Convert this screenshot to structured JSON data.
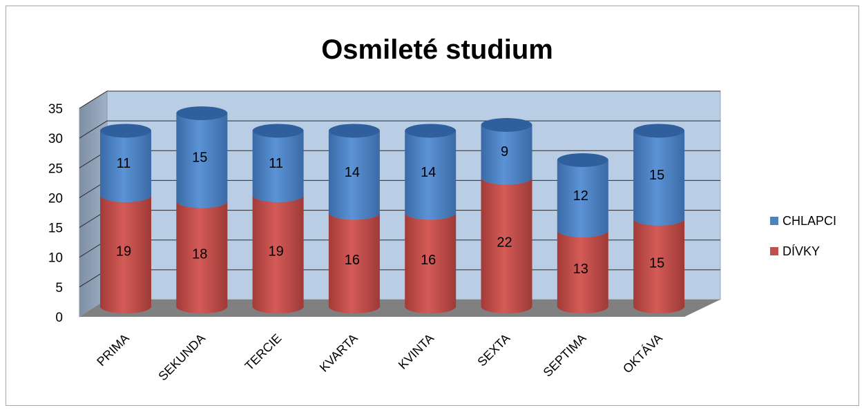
{
  "chart_data": {
    "type": "bar",
    "stacked": true,
    "style": "3d-cylinder",
    "title": "Osmileté studium",
    "categories": [
      "PRIMA",
      "SEKUNDA",
      "TERCIE",
      "KVARTA",
      "KVINTA",
      "SEXTA",
      "SEPTIMA",
      "OKTÁVA"
    ],
    "series": [
      {
        "name": "DÍVKY",
        "color": "#c0504d",
        "values": [
          19,
          18,
          19,
          16,
          16,
          22,
          13,
          15
        ]
      },
      {
        "name": "CHLAPCI",
        "color": "#4f81bd",
        "values": [
          11,
          15,
          11,
          14,
          14,
          9,
          12,
          15
        ]
      }
    ],
    "yticks": [
      0,
      5,
      10,
      15,
      20,
      25,
      30,
      35
    ],
    "ylim": [
      0,
      35
    ],
    "grid": true,
    "legend": "right",
    "legend_order": [
      "CHLAPCI",
      "DÍVKY"
    ],
    "wall_color": "#b9cde5",
    "floor_color": "#808080"
  }
}
